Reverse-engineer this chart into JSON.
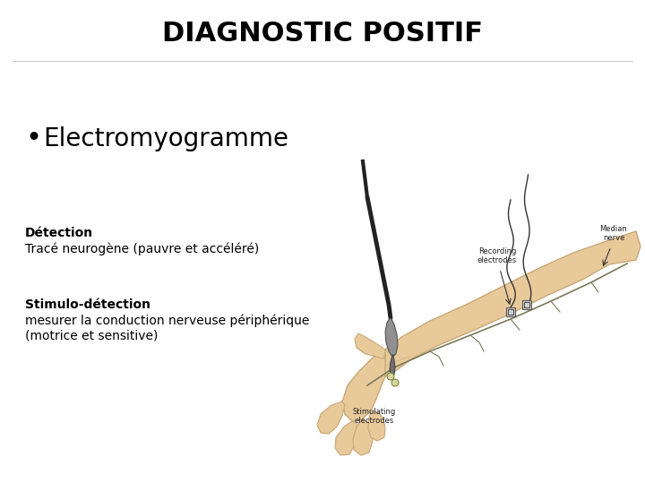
{
  "title": "DIAGNOSTIC POSITIF",
  "bullet_item": "Electromyogramme",
  "section1_line1": "Détection",
  "section1_line2": "Tracé neurogène (pauvre et accéléré)",
  "section2_line1": "Stimulo-détection",
  "section2_line2": "mesurer la conduction nerveuse périphérique",
  "section2_line3": "(motrice et sensitive)",
  "bg_color": "#ffffff",
  "title_color": "#000000",
  "text_color": "#000000",
  "title_fontsize": 22,
  "bullet_fontsize": 20,
  "body_fontsize": 10,
  "arm_color": "#e8c99a",
  "arm_edge_color": "#c9a878",
  "nerve_color": "#8a8a6a",
  "label_fontsize": 6
}
